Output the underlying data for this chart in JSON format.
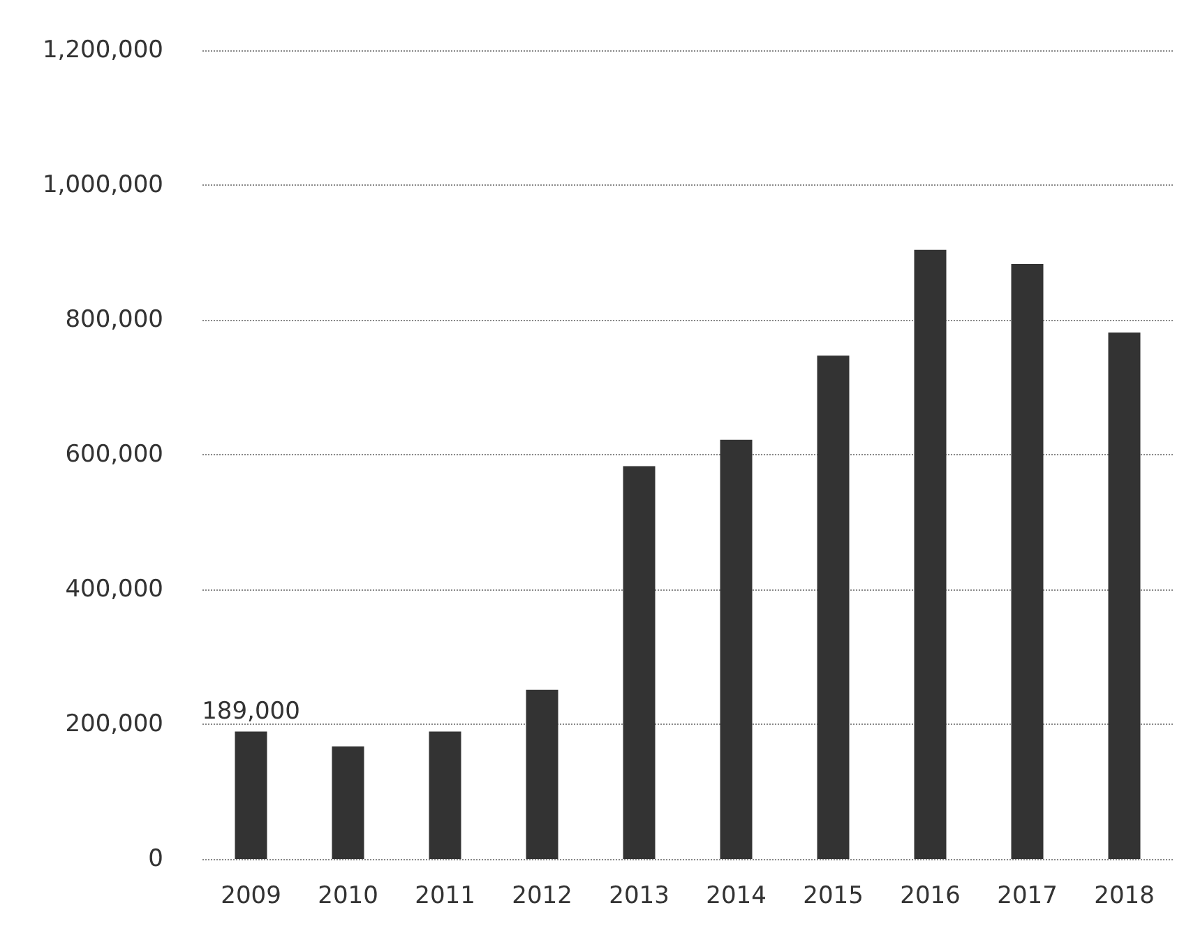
{
  "chart_data": {
    "type": "bar",
    "categories": [
      "2009",
      "2010",
      "2011",
      "2012",
      "2013",
      "2014",
      "2015",
      "2016",
      "2017",
      "2018"
    ],
    "values": [
      189000,
      167000,
      189000,
      251000,
      583000,
      622000,
      747000,
      904000,
      883000,
      781000
    ],
    "value_labels": [
      "189,000",
      null,
      null,
      null,
      null,
      null,
      null,
      null,
      null,
      null
    ],
    "color": "#333333",
    "ylim": [
      0,
      1200000
    ],
    "yticks": [
      0,
      {
        "value": 200000,
        "label": "200,000"
      },
      {
        "value": 400000,
        "label": "400,000"
      },
      {
        "value": 600000,
        "label": "600,000"
      },
      {
        "value": 800000,
        "label": "800,000"
      },
      {
        "value": 1000000,
        "label": "1,000,000"
      },
      {
        "value": 1200000,
        "label": "1,200,000"
      }
    ],
    "grid": "y"
  }
}
